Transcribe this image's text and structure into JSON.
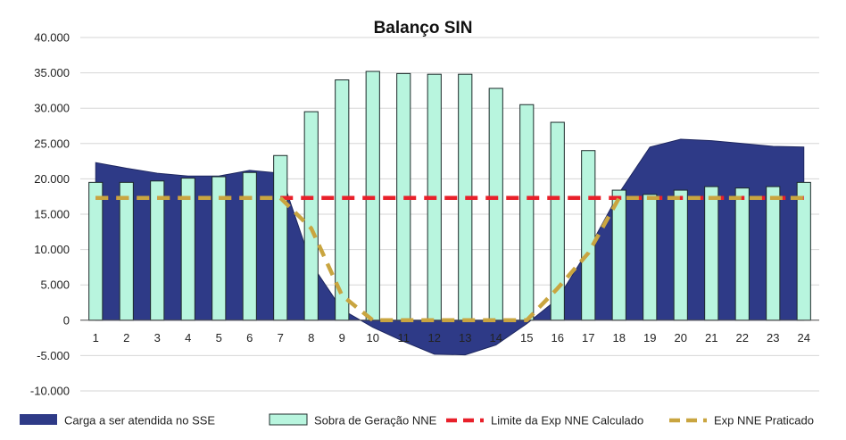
{
  "chart_data": {
    "type": "bar",
    "title": "Balanço SIN",
    "xlabel": "",
    "ylabel": "",
    "categories": [
      "1",
      "2",
      "3",
      "4",
      "5",
      "6",
      "7",
      "8",
      "9",
      "10",
      "11",
      "12",
      "13",
      "14",
      "15",
      "16",
      "17",
      "18",
      "19",
      "20",
      "21",
      "22",
      "23",
      "24"
    ],
    "ylim": [
      -10000,
      40000
    ],
    "yticks": [
      40000,
      35000,
      30000,
      25000,
      20000,
      15000,
      10000,
      5000,
      0,
      -5000,
      -10000
    ],
    "ytick_labels": [
      "40.000",
      "35.000",
      "30.000",
      "25.000",
      "20.000",
      "15.000",
      "10.000",
      "5.000",
      "0",
      "-5.000",
      "-10.000"
    ],
    "grid": true,
    "legend_position": "bottom",
    "series": [
      {
        "name": "Carga a ser atendida no SSE",
        "type": "area",
        "color": "#2e3a87",
        "values": [
          22300,
          21500,
          20800,
          20400,
          20400,
          21200,
          20800,
          8000,
          1500,
          -1000,
          -3000,
          -4800,
          -4900,
          -3500,
          -500,
          3000,
          10000,
          18000,
          24500,
          25600,
          25400,
          25000,
          24600,
          24500
        ]
      },
      {
        "name": "Sobra de Geração NNE",
        "type": "bar",
        "color": "#b8f5de",
        "stroke": "#1d2b2b",
        "values": [
          19500,
          19500,
          19700,
          20100,
          20300,
          20900,
          23300,
          29500,
          34000,
          35200,
          34900,
          34800,
          34800,
          32800,
          30500,
          28000,
          24000,
          18400,
          17800,
          18400,
          18900,
          18700,
          18900,
          19500
        ]
      },
      {
        "name": "Limite da Exp NNE Calculado",
        "type": "line",
        "color": "#e8202a",
        "dash": "dashed",
        "values": [
          17300,
          17300,
          17300,
          17300,
          17300,
          17300,
          17300,
          17300,
          17300,
          17300,
          17300,
          17300,
          17300,
          17300,
          17300,
          17300,
          17300,
          17300,
          17300,
          17300,
          17300,
          17300,
          17300,
          17300
        ]
      },
      {
        "name": "Exp NNE Praticado",
        "type": "line",
        "color": "#c9a540",
        "dash": "dashed",
        "values": [
          17300,
          17300,
          17300,
          17300,
          17300,
          17300,
          17300,
          13000,
          3500,
          0,
          0,
          0,
          0,
          0,
          0,
          4500,
          9500,
          17300,
          17300,
          17300,
          17300,
          17300,
          17300,
          17300
        ]
      }
    ]
  }
}
